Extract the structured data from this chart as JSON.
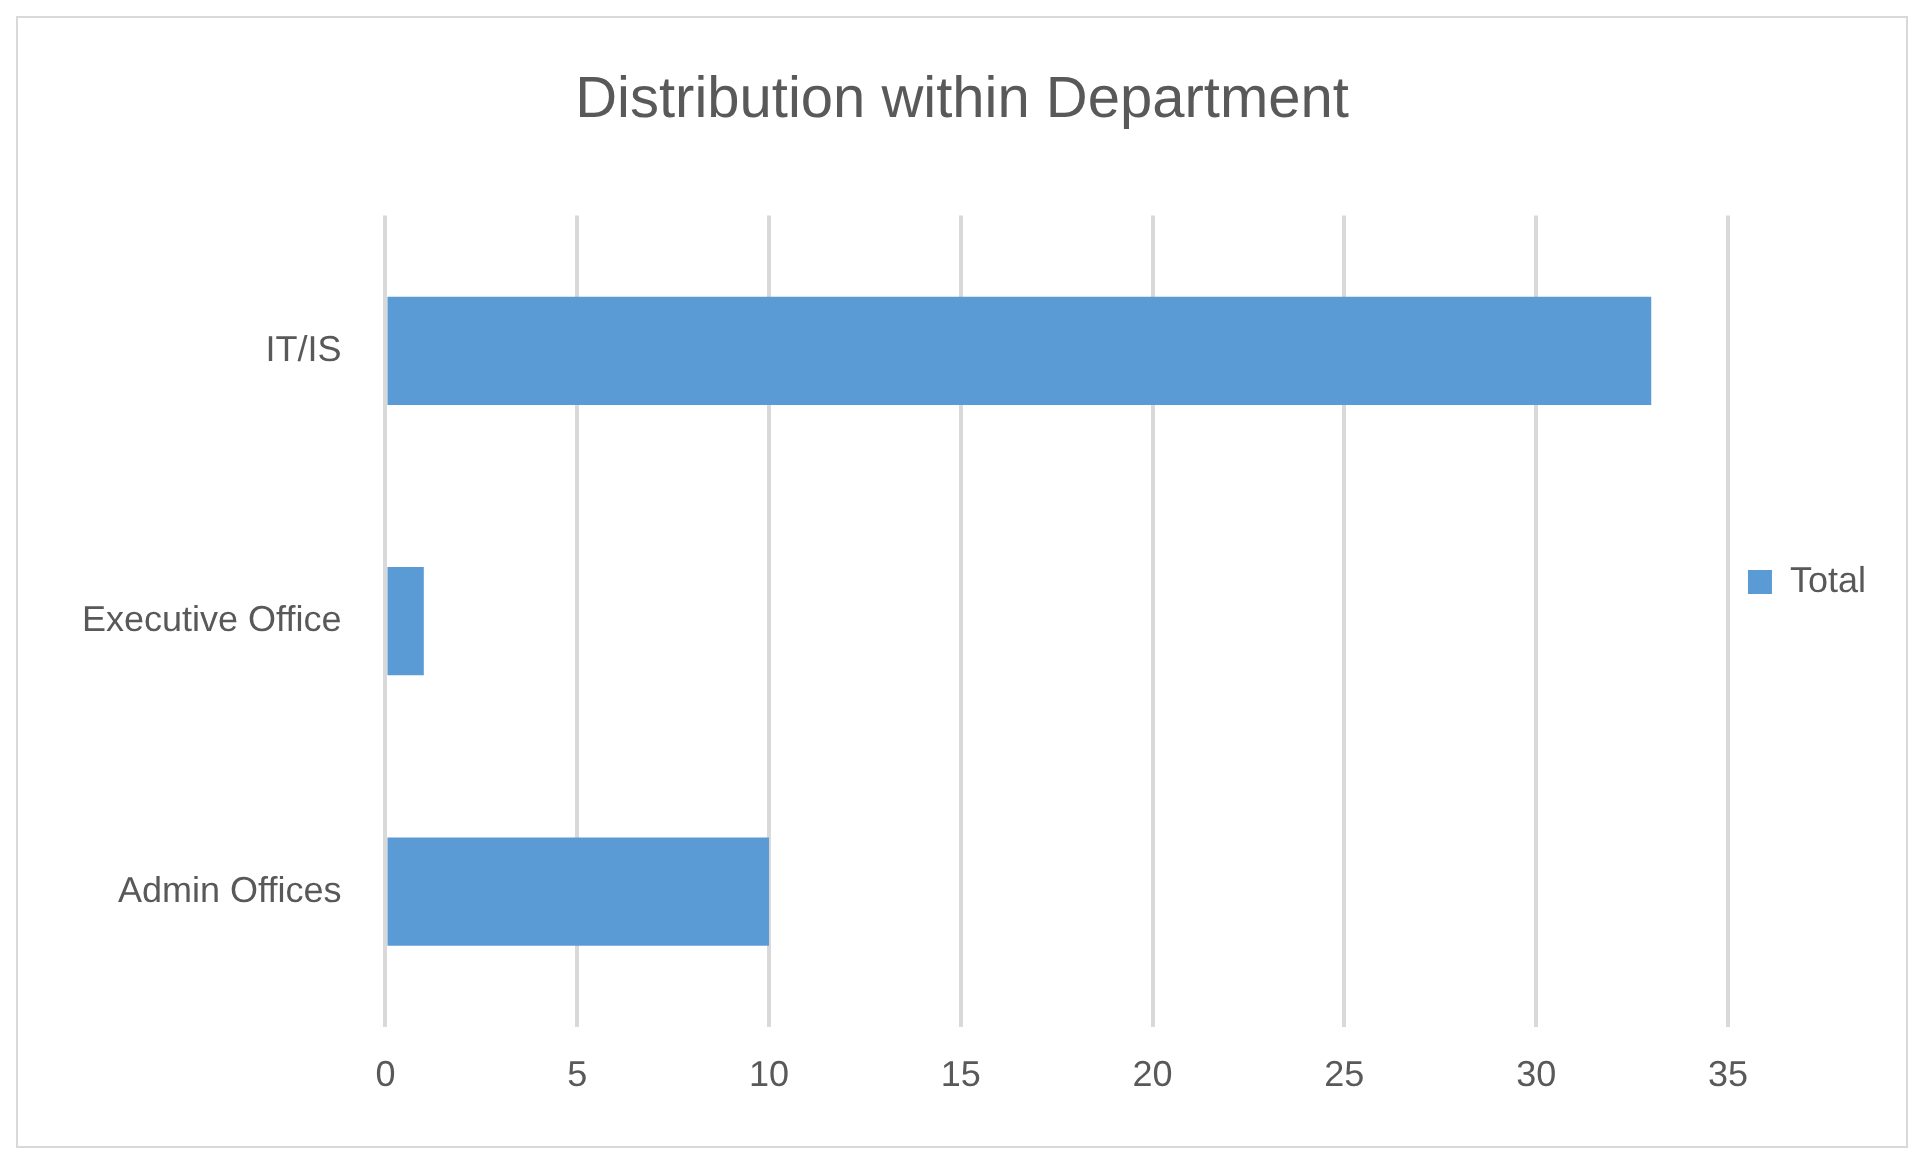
{
  "chart_data": {
    "type": "bar",
    "title": "Distribution within Department",
    "orientation": "horizontal",
    "categories": [
      "IT/IS",
      "Executive Office",
      "Admin Offices"
    ],
    "series": [
      {
        "name": "Total",
        "color": "#5b9bd5",
        "values": [
          33,
          1,
          10
        ]
      }
    ],
    "xlim": [
      0,
      35
    ],
    "xticks": [
      0,
      5,
      10,
      15,
      20,
      25,
      30,
      35
    ],
    "grid": "x",
    "legend": "right"
  }
}
